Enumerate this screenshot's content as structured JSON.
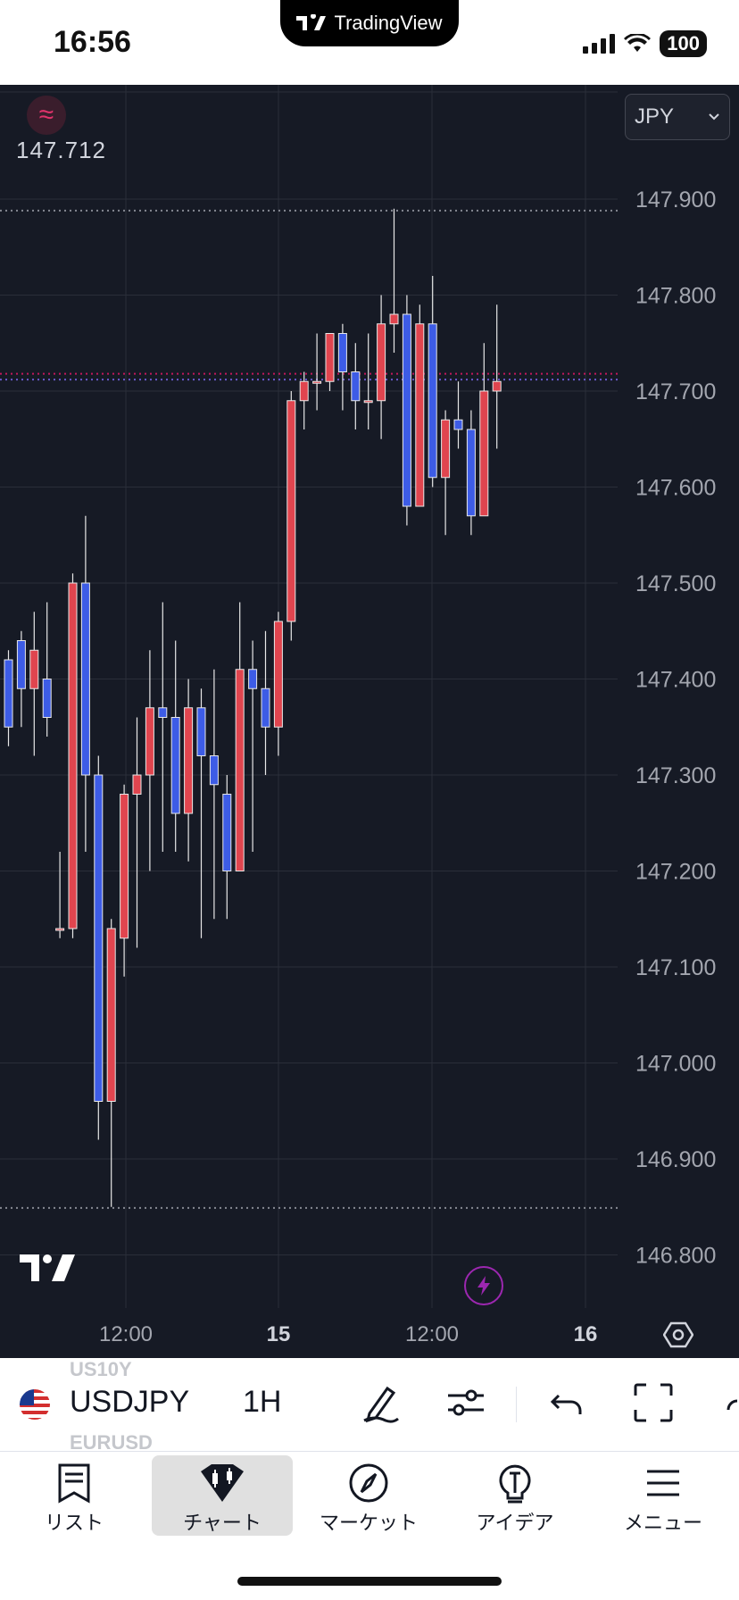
{
  "status_bar": {
    "time": "16:56",
    "app_pill": "TradingView",
    "battery": "100"
  },
  "chart": {
    "price_badge_icon": "≈",
    "last_price": "147.712",
    "currency": "JPY",
    "colors": {
      "up": "#e0454f",
      "down": "#3d5ce6",
      "background": "#161a25",
      "grid": "#2a2e39",
      "axis_text": "#a3a6af",
      "current_line": "#c2185b"
    }
  },
  "chart_data": {
    "type": "candlestick",
    "symbol": "USDJPY",
    "interval": "1H",
    "y_ticks": [
      "147.900",
      "147.800",
      "147.700",
      "147.600",
      "147.500",
      "147.400",
      "147.300",
      "147.200",
      "147.100",
      "147.000",
      "146.900",
      "146.800"
    ],
    "x_ticks": [
      "12:00",
      "15",
      "12:00",
      "16"
    ],
    "ylim": [
      146.79,
      147.95
    ],
    "dotted_levels": [
      147.888,
      147.718,
      147.712,
      146.849
    ],
    "candles": [
      [
        147.42,
        147.35,
        147.43,
        147.33
      ],
      [
        147.44,
        147.39,
        147.45,
        147.35
      ],
      [
        147.39,
        147.43,
        147.47,
        147.32
      ],
      [
        147.4,
        147.36,
        147.48,
        147.34
      ],
      [
        147.14,
        147.14,
        147.22,
        147.13
      ],
      [
        147.14,
        147.5,
        147.51,
        147.13
      ],
      [
        147.5,
        147.3,
        147.57,
        147.22
      ],
      [
        147.3,
        146.96,
        147.32,
        146.92
      ],
      [
        146.96,
        147.14,
        147.15,
        146.85
      ],
      [
        147.13,
        147.28,
        147.29,
        147.09
      ],
      [
        147.28,
        147.3,
        147.36,
        147.12
      ],
      [
        147.3,
        147.37,
        147.43,
        147.2
      ],
      [
        147.37,
        147.36,
        147.48,
        147.22
      ],
      [
        147.36,
        147.26,
        147.44,
        147.22
      ],
      [
        147.26,
        147.37,
        147.4,
        147.21
      ],
      [
        147.37,
        147.32,
        147.39,
        147.13
      ],
      [
        147.32,
        147.29,
        147.41,
        147.15
      ],
      [
        147.28,
        147.2,
        147.3,
        147.15
      ],
      [
        147.2,
        147.41,
        147.48,
        147.2
      ],
      [
        147.41,
        147.39,
        147.44,
        147.22
      ],
      [
        147.39,
        147.35,
        147.45,
        147.3
      ],
      [
        147.35,
        147.46,
        147.47,
        147.32
      ],
      [
        147.46,
        147.69,
        147.7,
        147.44
      ],
      [
        147.69,
        147.71,
        147.72,
        147.66
      ],
      [
        147.71,
        147.71,
        147.76,
        147.68
      ],
      [
        147.71,
        147.76,
        147.76,
        147.7
      ],
      [
        147.76,
        147.72,
        147.77,
        147.68
      ],
      [
        147.72,
        147.69,
        147.75,
        147.66
      ],
      [
        147.69,
        147.69,
        147.76,
        147.66
      ],
      [
        147.69,
        147.77,
        147.8,
        147.65
      ],
      [
        147.77,
        147.78,
        147.89,
        147.74
      ],
      [
        147.78,
        147.58,
        147.8,
        147.56
      ],
      [
        147.58,
        147.77,
        147.79,
        147.58
      ],
      [
        147.77,
        147.61,
        147.82,
        147.6
      ],
      [
        147.61,
        147.67,
        147.68,
        147.55
      ],
      [
        147.67,
        147.66,
        147.71,
        147.64
      ],
      [
        147.66,
        147.57,
        147.68,
        147.55
      ],
      [
        147.57,
        147.7,
        147.75,
        147.57
      ],
      [
        147.7,
        147.71,
        147.79,
        147.64
      ]
    ]
  },
  "toolbar": {
    "symbol": "USDJPY",
    "interval": "1H",
    "prev_symbol": "US10Y",
    "next_symbol": "EURUSD"
  },
  "nav": [
    {
      "label": "リスト"
    },
    {
      "label": "チャート"
    },
    {
      "label": "マーケット"
    },
    {
      "label": "アイデア"
    },
    {
      "label": "メニュー"
    }
  ]
}
